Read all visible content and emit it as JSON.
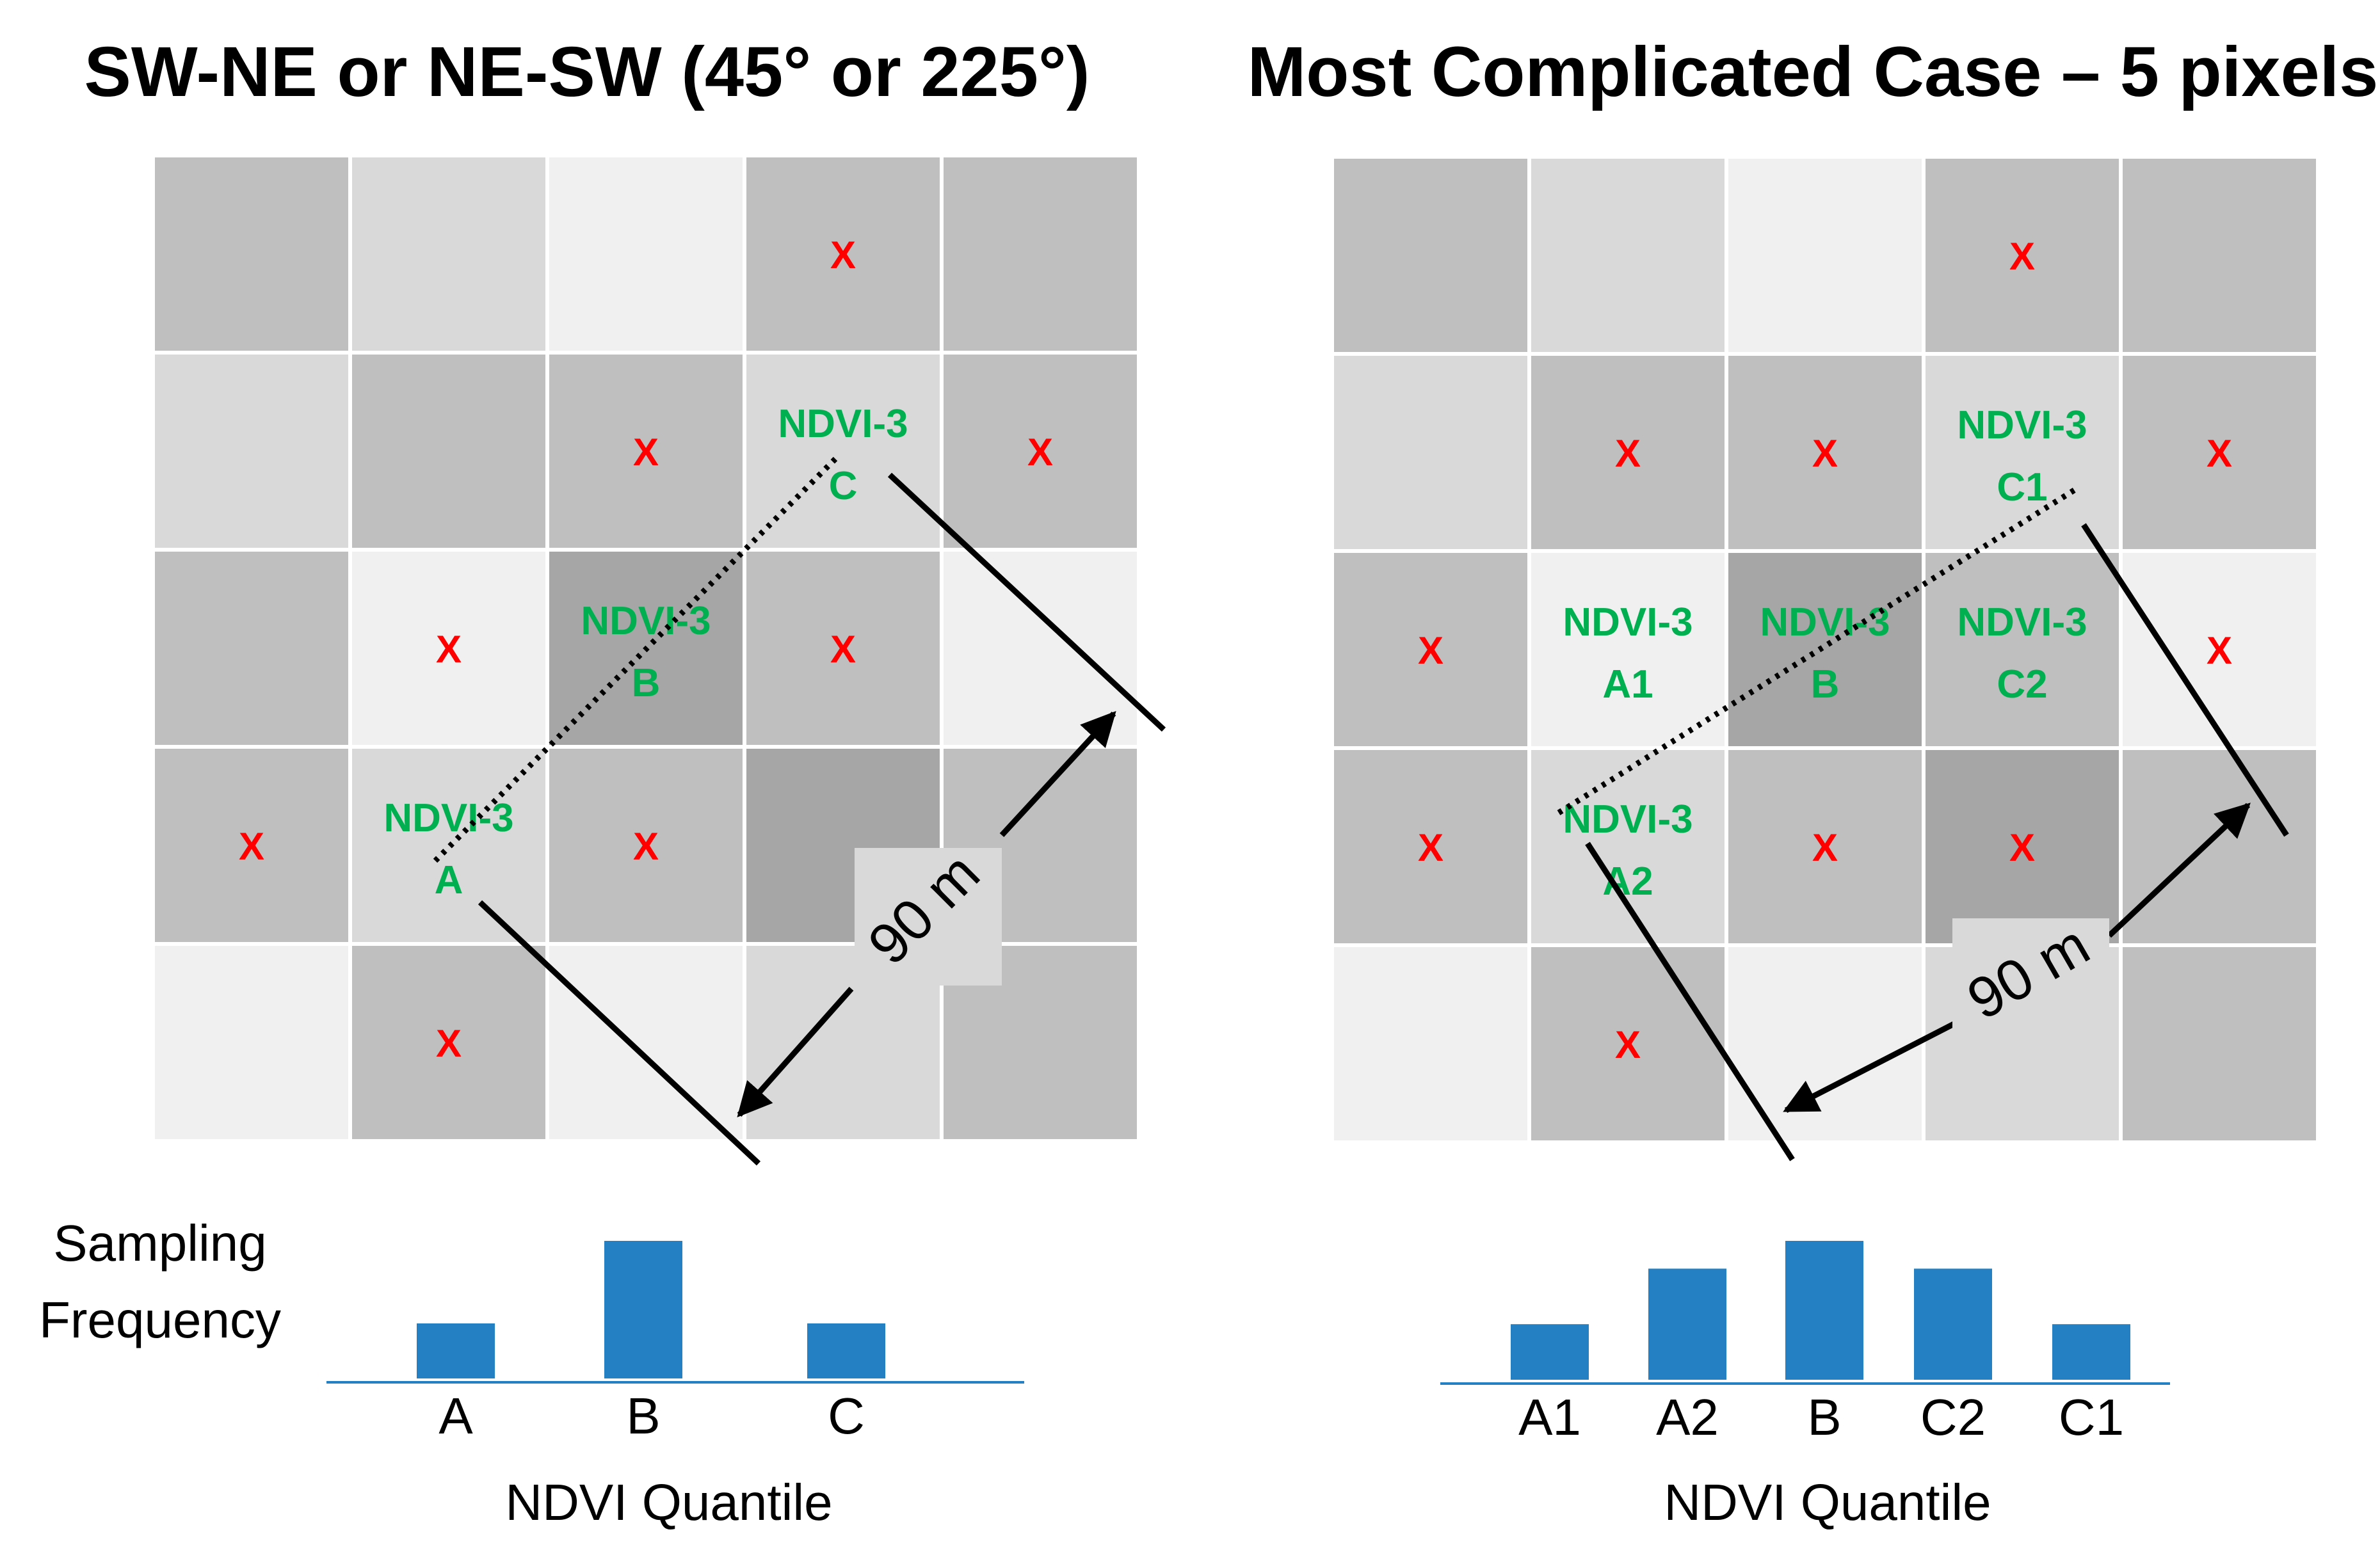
{
  "colors": {
    "cell_lightest": "#f0f0f0",
    "cell_light": "#d9d9d9",
    "cell_medium": "#bfbfbf",
    "cell_dark": "#a6a6a6",
    "x_mark": "#ff0000",
    "ndvi_label": "#00b050",
    "bar": "#2580c3",
    "baseline": "#2580c3",
    "line": "#000000"
  },
  "icon_names": {
    "x_mark": "x-mark-icon"
  },
  "left_panel": {
    "title": "SW-NE or NE-SW (45° or 225°)",
    "grid": {
      "shades": [
        [
          "medium",
          "light",
          "lightest",
          "medium",
          "medium"
        ],
        [
          "light",
          "medium",
          "medium",
          "light",
          "medium"
        ],
        [
          "medium",
          "lightest",
          "dark",
          "medium",
          "lightest"
        ],
        [
          "medium",
          "light",
          "medium",
          "dark",
          "medium"
        ],
        [
          "lightest",
          "medium",
          "lightest",
          "light",
          "medium"
        ]
      ],
      "x_marks": [
        [
          0,
          3
        ],
        [
          1,
          2
        ],
        [
          1,
          4
        ],
        [
          2,
          1
        ],
        [
          2,
          3
        ],
        [
          3,
          0
        ],
        [
          3,
          2
        ],
        [
          4,
          1
        ]
      ],
      "labels": [
        {
          "row": 1,
          "col": 3,
          "line1": "NDVI-3",
          "line2": "C"
        },
        {
          "row": 2,
          "col": 2,
          "line1": "NDVI-3",
          "line2": "B"
        },
        {
          "row": 3,
          "col": 1,
          "line1": "NDVI-3",
          "line2": "A"
        }
      ]
    },
    "distance_label": "90 m",
    "y_axis_label_line1": "Sampling",
    "y_axis_label_line2": "Frequency",
    "x_axis_label": "NDVI Quantile"
  },
  "right_panel": {
    "title": "Most Complicated Case – 5 pixels",
    "grid": {
      "shades": [
        [
          "medium",
          "light",
          "lightest",
          "medium",
          "medium"
        ],
        [
          "light",
          "medium",
          "medium",
          "light",
          "medium"
        ],
        [
          "medium",
          "lightest",
          "dark",
          "medium",
          "lightest"
        ],
        [
          "medium",
          "light",
          "medium",
          "dark",
          "medium"
        ],
        [
          "lightest",
          "medium",
          "lightest",
          "light",
          "medium"
        ]
      ],
      "x_marks": [
        [
          0,
          3
        ],
        [
          1,
          1
        ],
        [
          1,
          2
        ],
        [
          1,
          4
        ],
        [
          2,
          0
        ],
        [
          2,
          4
        ],
        [
          3,
          0
        ],
        [
          3,
          2
        ],
        [
          3,
          3
        ],
        [
          4,
          1
        ]
      ],
      "labels": [
        {
          "row": 1,
          "col": 3,
          "line1": "NDVI-3",
          "line2": "C1"
        },
        {
          "row": 2,
          "col": 1,
          "line1": "NDVI-3",
          "line2": "A1"
        },
        {
          "row": 2,
          "col": 2,
          "line1": "NDVI-3",
          "line2": "B"
        },
        {
          "row": 2,
          "col": 3,
          "line1": "NDVI-3",
          "line2": "C2"
        },
        {
          "row": 3,
          "col": 1,
          "line1": "NDVI-3",
          "line2": "A2"
        }
      ]
    },
    "distance_label": "90 m",
    "x_axis_label": "NDVI Quantile"
  },
  "chart_data": [
    {
      "type": "bar",
      "title": "",
      "categories": [
        "A",
        "B",
        "C"
      ],
      "values": [
        1,
        2.5,
        1
      ],
      "xlabel": "NDVI Quantile",
      "ylabel": "Sampling Frequency",
      "ylim": [
        0,
        2.5
      ]
    },
    {
      "type": "bar",
      "title": "",
      "categories": [
        "A1",
        "A2",
        "B",
        "C2",
        "C1"
      ],
      "values": [
        1,
        2,
        2.5,
        2,
        1
      ],
      "xlabel": "NDVI Quantile",
      "ylabel": "",
      "ylim": [
        0,
        2.5
      ]
    }
  ]
}
